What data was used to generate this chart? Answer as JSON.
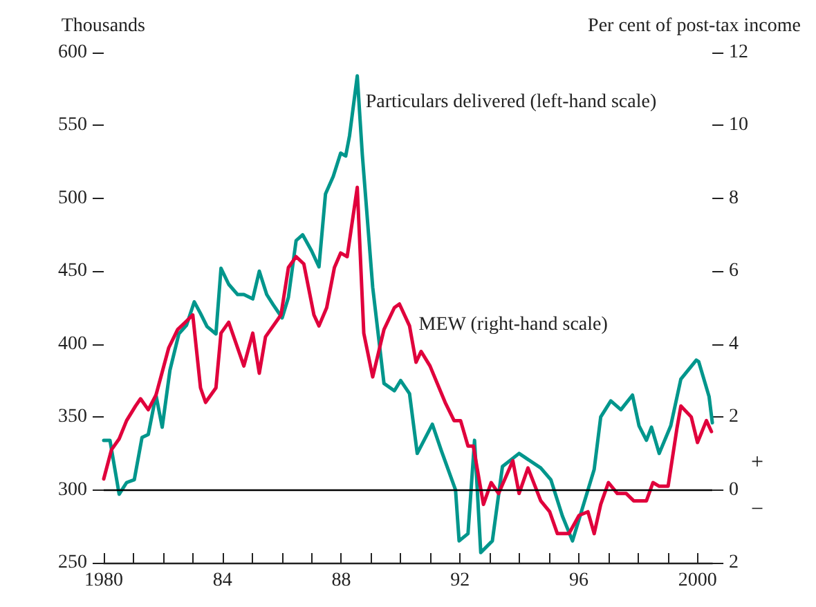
{
  "chart_data": {
    "type": "line",
    "ylabel": "Thousands",
    "y2label": "Per cent of post-tax income",
    "xlim": [
      1980,
      2000.5
    ],
    "xticks": [
      1980,
      {
        "value": 1981,
        "label": null
      },
      {
        "value": 1982,
        "label": null
      },
      {
        "value": 1983,
        "label": null
      },
      {
        "value": 1984,
        "label": "84"
      },
      {
        "value": 1985,
        "label": null
      },
      {
        "value": 1986,
        "label": null
      },
      {
        "value": 1987,
        "label": null
      },
      {
        "value": 1988,
        "label": "88"
      },
      {
        "value": 1989,
        "label": null
      },
      {
        "value": 1990,
        "label": null
      },
      {
        "value": 1991,
        "label": null
      },
      {
        "value": 1992,
        "label": "92"
      },
      {
        "value": 1993,
        "label": null
      },
      {
        "value": 1994,
        "label": null
      },
      {
        "value": 1995,
        "label": null
      },
      {
        "value": 1996,
        "label": "96"
      },
      {
        "value": 1997,
        "label": null
      },
      {
        "value": 1998,
        "label": null
      },
      {
        "value": 1999,
        "label": null
      },
      2000
    ],
    "ylim": [
      250,
      600
    ],
    "yticks": [
      250,
      300,
      350,
      400,
      450,
      500,
      550,
      600
    ],
    "y2lim": [
      -2,
      12
    ],
    "y2ticks": [
      {
        "value": -2,
        "label": "2"
      },
      0,
      2,
      4,
      6,
      8,
      10,
      12
    ],
    "grid": false,
    "legend": false,
    "marker": "none",
    "line_style": "solid",
    "ref_lines": [
      {
        "axis": "y2",
        "value": 0,
        "color": "#000000"
      }
    ],
    "annotations": [
      "+",
      "−"
    ],
    "series": [
      {
        "name": "Particulars delivered (left-hand scale)",
        "color": "#00968c",
        "x": [
          1980.0,
          1980.21,
          1980.52,
          1980.77,
          1981.03,
          1981.29,
          1981.5,
          1981.76,
          1981.97,
          1982.23,
          1982.53,
          1982.79,
          1983.05,
          1983.26,
          1983.48,
          1983.78,
          1983.95,
          1984.21,
          1984.51,
          1984.72,
          1985.02,
          1985.24,
          1985.49,
          1985.71,
          1986.01,
          1986.22,
          1986.48,
          1986.7,
          1987.0,
          1987.25,
          1987.47,
          1987.73,
          1987.98,
          1988.15,
          1988.28,
          1988.54,
          1988.71,
          1989.06,
          1989.44,
          1989.79,
          1990.0,
          1990.3,
          1990.56,
          1991.07,
          1991.37,
          1991.85,
          1991.97,
          1992.27,
          1992.49,
          1992.7,
          1993.09,
          1993.43,
          1993.99,
          1994.72,
          1995.06,
          1995.45,
          1995.79,
          1996.52,
          1996.74,
          1997.08,
          1997.42,
          1997.81,
          1998.03,
          1998.28,
          1998.45,
          1998.71,
          1999.1,
          1999.44,
          1999.96,
          2000.04,
          2000.39,
          2000.5
        ],
        "values": [
          334,
          334,
          297,
          305,
          307,
          336,
          338,
          365,
          343,
          382,
          407,
          413,
          429,
          421,
          412,
          407,
          452,
          441,
          434,
          434,
          431,
          450,
          434,
          427,
          418,
          432,
          471,
          475,
          464,
          453,
          503,
          515,
          531,
          529,
          543,
          584,
          530,
          439,
          373,
          368,
          375,
          366,
          325,
          345,
          327,
          300,
          265,
          270,
          334,
          257,
          265,
          316,
          325,
          315,
          307,
          282,
          265,
          314,
          350,
          361,
          355,
          365,
          344,
          334,
          343,
          325,
          344,
          376,
          389,
          388,
          364,
          346
        ]
      },
      {
        "name": "MEW (right-hand scale)",
        "axis": "y2",
        "color": "#e0003c",
        "x": [
          1980.0,
          1980.26,
          1980.52,
          1980.77,
          1981.07,
          1981.24,
          1981.5,
          1981.76,
          1982.19,
          1982.49,
          1982.75,
          1983.0,
          1983.26,
          1983.43,
          1983.78,
          1983.95,
          1984.21,
          1984.72,
          1985.02,
          1985.24,
          1985.45,
          1985.97,
          1986.22,
          1986.48,
          1986.74,
          1987.08,
          1987.25,
          1987.51,
          1987.77,
          1987.98,
          1988.2,
          1988.54,
          1988.76,
          1989.06,
          1989.44,
          1989.79,
          1989.96,
          1990.3,
          1990.52,
          1990.69,
          1990.99,
          1991.5,
          1991.8,
          1992.02,
          1992.27,
          1992.45,
          1992.79,
          1993.05,
          1993.3,
          1993.78,
          1993.99,
          1994.29,
          1994.72,
          1995.02,
          1995.28,
          1995.67,
          1996.01,
          1996.31,
          1996.52,
          1996.74,
          1997.0,
          1997.3,
          1997.6,
          1997.85,
          1998.28,
          1998.5,
          1998.71,
          1999.01,
          1999.31,
          1999.44,
          1999.79,
          2000.0,
          2000.3,
          2000.47
        ],
        "values": [
          0.3,
          1.1,
          1.4,
          1.9,
          2.3,
          2.5,
          2.2,
          2.6,
          3.9,
          4.4,
          4.6,
          4.8,
          2.8,
          2.4,
          2.8,
          4.3,
          4.6,
          3.4,
          4.3,
          3.2,
          4.2,
          4.8,
          6.1,
          6.4,
          6.2,
          4.8,
          4.5,
          5.0,
          6.1,
          6.5,
          6.4,
          8.3,
          4.3,
          3.1,
          4.4,
          5.0,
          5.1,
          4.5,
          3.5,
          3.8,
          3.4,
          2.4,
          1.9,
          1.9,
          1.2,
          1.2,
          -0.4,
          0.2,
          -0.1,
          0.8,
          -0.1,
          0.6,
          -0.3,
          -0.6,
          -1.2,
          -1.2,
          -0.7,
          -0.6,
          -1.2,
          -0.4,
          0.2,
          -0.1,
          -0.1,
          -0.3,
          -0.3,
          0.2,
          0.1,
          0.1,
          1.7,
          2.3,
          2.0,
          1.3,
          1.9,
          1.6
        ]
      }
    ]
  }
}
